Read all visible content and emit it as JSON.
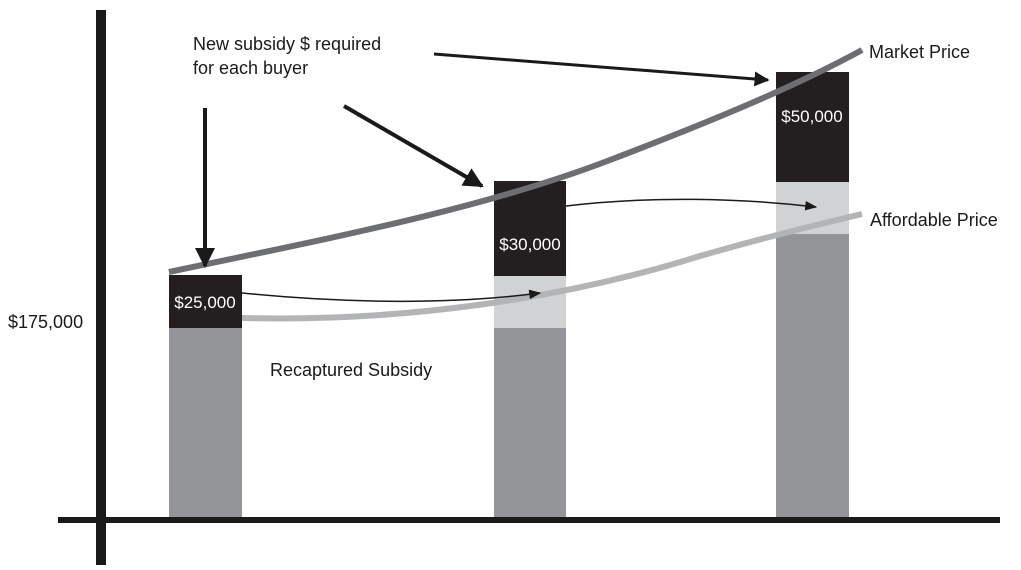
{
  "labels": {
    "y_value": "$175,000",
    "annotation_line1": "New subsidy $ required",
    "annotation_line2": "for each buyer",
    "market_price": "Market Price",
    "affordable_price": "Affordable Price",
    "recaptured_subsidy": "Recaptured Subsidy"
  },
  "bars": [
    {
      "subsidy_label": "$25,000"
    },
    {
      "subsidy_label": "$30,000"
    },
    {
      "subsidy_label": "$50,000"
    }
  ],
  "colors": {
    "axis": "#1a1a1a",
    "subsidy_block": "#231f20",
    "recaptured_block": "#939598",
    "gap_block": "#d1d2d4",
    "market_curve": "#6d6e71",
    "affordable_curve": "#b3b4b6",
    "arrow": "#1a1a1a"
  }
}
